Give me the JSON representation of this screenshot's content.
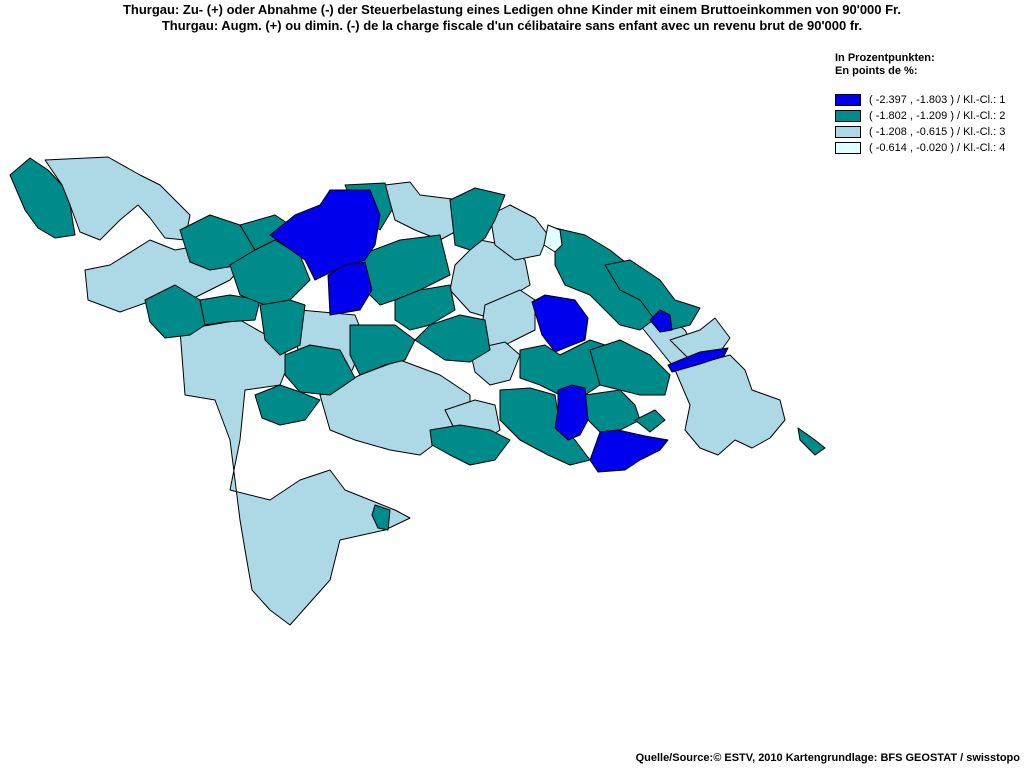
{
  "title": {
    "de": "Thurgau: Zu- (+) oder Abnahme (-) der Steuerbelastung eines Ledigen ohne Kinder mit einem Bruttoeinkommen von 90'000 Fr.",
    "fr": "Thurgau: Augm. (+) ou dimin. (-) de la charge fiscale d'un célibataire sans enfant avec un revenu brut de 90'000 fr."
  },
  "legend": {
    "unit_de": "In Prozentpunkten:",
    "unit_fr": "En points de %:",
    "classes": [
      {
        "label": "( -2.397 , -1.803 ) / Kl.-Cl.: 1",
        "color": "#0000ee"
      },
      {
        "label": "( -1.802 , -1.209 ) / Kl.-Cl.: 2",
        "color": "#008b8b"
      },
      {
        "label": "( -1.208 , -0.615 ) / Kl.-Cl.: 3",
        "color": "#add8e6"
      },
      {
        "label": "( -0.614 , -0.020 ) / Kl.-Cl.: 4",
        "color": "#e0ffff"
      }
    ]
  },
  "source": "Quelle/Source:© ESTV, 2010 Kartengrundlage: BFS GEOSTAT / swisstopo"
}
